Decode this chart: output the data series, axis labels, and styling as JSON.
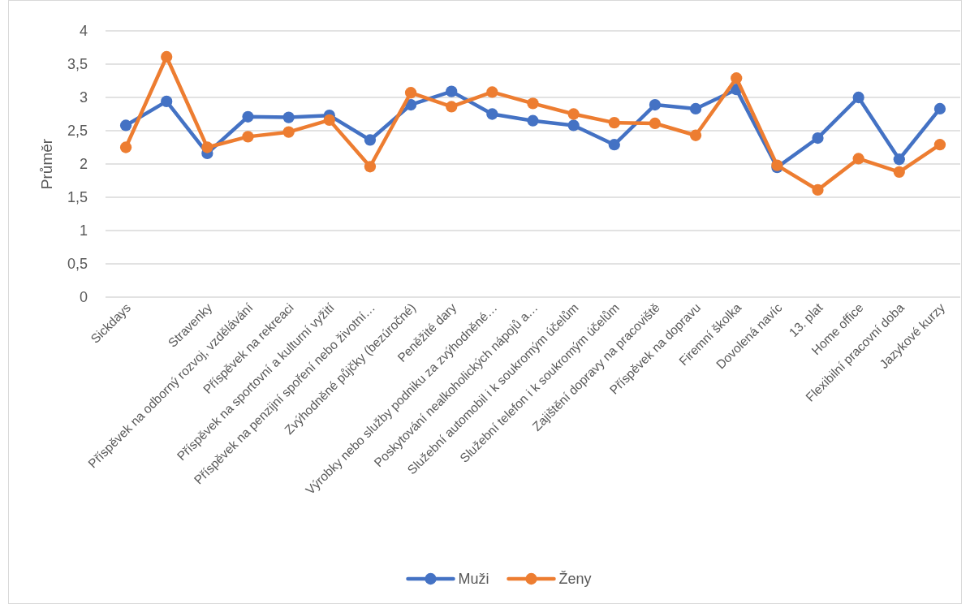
{
  "chart_data": {
    "type": "line",
    "categories": [
      "Sickdays",
      null,
      "Stravenky",
      "Příspěvek na odborný rozvoj, vzdělávání",
      "Příspěvek na rekreaci",
      "Příspěvek na sportovní a kulturní vyžití",
      "Příspěvek na penzijní spoření nebo životní…",
      "Zvýhodněné půjčky (bezúročné)",
      "Peněžité dary",
      "Výrobky nebo služby podniku za zvýhodněné…",
      "Poskytování nealkoholických nápojů a…",
      "Služební automobil i k soukromým účelům",
      "Služební telefon i k soukromým účelům",
      "Zajištění dopravy na pracoviště",
      "Příspěvek na dopravu",
      "Firemní školka",
      "Dovolená navíc",
      "13. plat",
      "Home office",
      "Flexibilní pracovní doba",
      "Jazykové kurzy"
    ],
    "series": [
      {
        "name": "Muži",
        "color": "#4472c4",
        "values": [
          2.58,
          2.94,
          2.16,
          2.71,
          2.7,
          2.73,
          2.36,
          2.89,
          3.09,
          2.75,
          2.65,
          2.58,
          2.29,
          2.89,
          2.83,
          3.12,
          1.95,
          2.39,
          3.0,
          2.07,
          2.83
        ]
      },
      {
        "name": "Ženy",
        "color": "#ed7d31",
        "values": [
          2.25,
          3.61,
          2.25,
          2.41,
          2.48,
          2.66,
          1.96,
          3.07,
          2.86,
          3.08,
          2.91,
          2.75,
          2.62,
          2.61,
          2.43,
          3.29,
          1.98,
          1.61,
          2.08,
          1.88,
          2.29
        ]
      }
    ],
    "ylabel": "Průměr",
    "ylim": [
      0,
      4
    ],
    "yticks": [
      0,
      {
        "value": 0.5,
        "label": "0,5"
      },
      1,
      {
        "value": 1.5,
        "label": "1,5"
      },
      2,
      {
        "value": 2.5,
        "label": "2,5"
      },
      3,
      {
        "value": 3.5,
        "label": "3,5"
      },
      4
    ],
    "grid": "y",
    "legend": "bottom",
    "marker": "circle"
  }
}
